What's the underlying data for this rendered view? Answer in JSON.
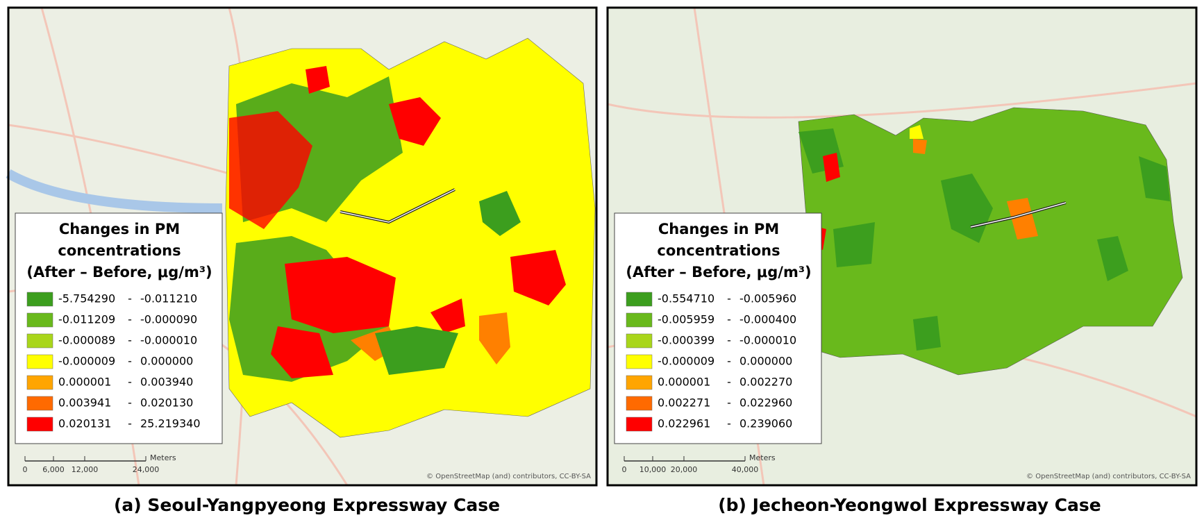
{
  "panels": [
    {
      "caption": "(a) Seoul-Yangpyeong Expressway Case",
      "legend": {
        "title": [
          "Changes in PM",
          "concentrations",
          "(After – Before, μg/m³)"
        ],
        "separator": "-",
        "items": [
          {
            "from": "-5.754290",
            "to": "-0.011210",
            "color": "#3c9e1e"
          },
          {
            "from": "-0.011209",
            "to": "-0.000090",
            "color": "#69b91c"
          },
          {
            "from": "-0.000089",
            "to": "-0.000010",
            "color": "#a9d61a"
          },
          {
            "from": "-0.000009",
            "to": "0.000000",
            "color": "#ffff00"
          },
          {
            "from": "0.000001",
            "to": "0.003940",
            "color": "#ffa500"
          },
          {
            "from": "0.003941",
            "to": "0.020130",
            "color": "#ff6a00"
          },
          {
            "from": "0.020131",
            "to": "25.219340",
            "color": "#ff0000"
          }
        ]
      },
      "scale": {
        "ticks": [
          "0",
          "6,000",
          "12,000",
          "24,000"
        ],
        "unit": "Meters"
      },
      "attribution": "© OpenStreetMap (and) contributors, CC-BY-SA"
    },
    {
      "caption": "(b) Jecheon-Yeongwol Expressway Case",
      "legend": {
        "title": [
          "Changes in PM",
          "concentrations",
          "(After – Before, μg/m³)"
        ],
        "separator": "-",
        "items": [
          {
            "from": "-0.554710",
            "to": "-0.005960",
            "color": "#3c9e1e"
          },
          {
            "from": "-0.005959",
            "to": "-0.000400",
            "color": "#69b91c"
          },
          {
            "from": "-0.000399",
            "to": "-0.000010",
            "color": "#a9d61a"
          },
          {
            "from": "-0.000009",
            "to": "0.000000",
            "color": "#ffff00"
          },
          {
            "from": "0.000001",
            "to": "0.002270",
            "color": "#ffa500"
          },
          {
            "from": "0.002271",
            "to": "0.022960",
            "color": "#ff6a00"
          },
          {
            "from": "0.022961",
            "to": "0.239060",
            "color": "#ff0000"
          }
        ]
      },
      "scale": {
        "ticks": [
          "0",
          "10,000",
          "20,000",
          "40,000"
        ],
        "unit": "Meters"
      },
      "attribution": "© OpenStreetMap (and) contributors, CC-BY-SA"
    }
  ]
}
